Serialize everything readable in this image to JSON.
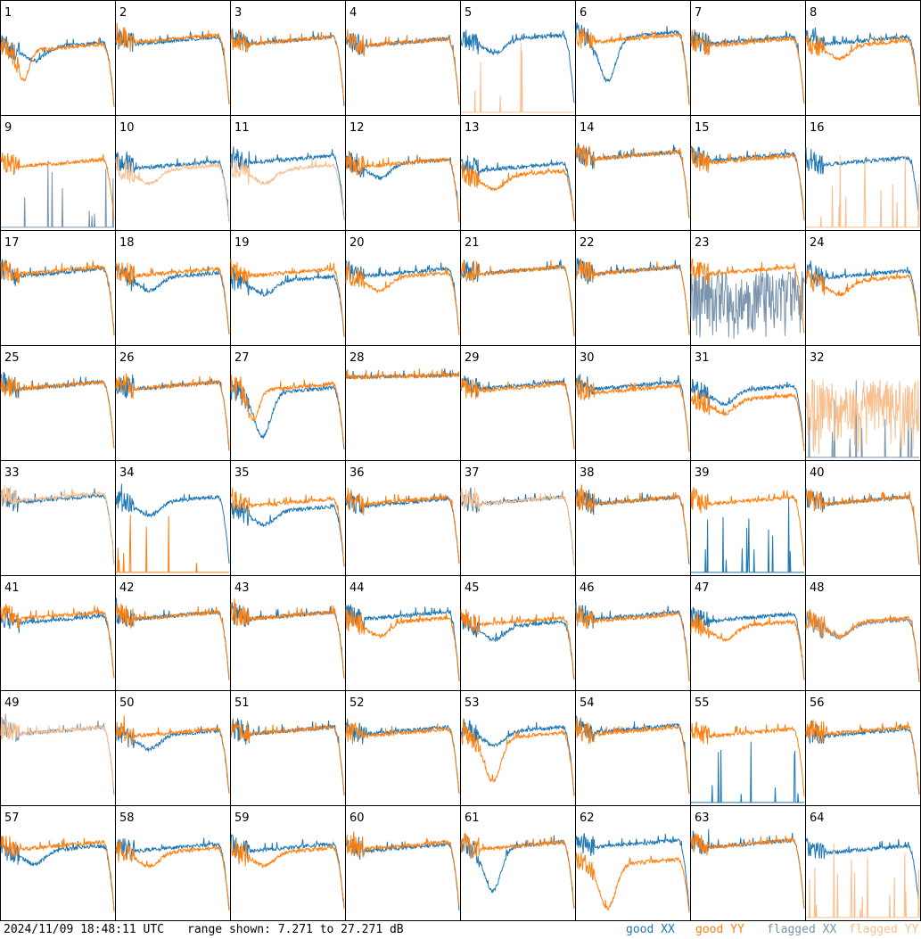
{
  "footer": {
    "timestamp": "2024/11/09 18:48:11 UTC",
    "range": "range shown: 7.271 to 27.271 dB"
  },
  "legend": {
    "good_xx": "good XX",
    "good_yy": "good YY",
    "flagged_xx": "flagged XX",
    "flagged_yy": "flagged YY"
  },
  "colors": {
    "good_xx": "#1f77b4",
    "good_yy": "#ff7f0e",
    "flagged_xx": "#7a94ad",
    "flagged_yy": "#f9bf8f"
  },
  "chart_data": {
    "type": "line",
    "grid": "8x8 small multiples",
    "y_range_db": [
      7.271,
      27.271
    ],
    "legend_placement": "bottom-right",
    "panels": [
      {
        "label": "1",
        "xx": {
          "status": "good",
          "shape": "dipped",
          "level": 0.74
        },
        "yy": {
          "status": "good",
          "shape": "notched",
          "level": 0.72
        }
      },
      {
        "label": "2",
        "xx": {
          "status": "good",
          "shape": "normal",
          "level": 0.8
        },
        "yy": {
          "status": "good",
          "shape": "normal",
          "level": 0.82
        }
      },
      {
        "label": "3",
        "xx": {
          "status": "good",
          "shape": "normal",
          "level": 0.8
        },
        "yy": {
          "status": "good",
          "shape": "normal",
          "level": 0.8
        }
      },
      {
        "label": "4",
        "xx": {
          "status": "good",
          "shape": "normal",
          "level": 0.78
        },
        "yy": {
          "status": "good",
          "shape": "normal",
          "level": 0.78
        }
      },
      {
        "label": "5",
        "xx": {
          "status": "good",
          "shape": "dipped",
          "level": 0.82
        },
        "yy": {
          "status": "flagged",
          "shape": "spikes",
          "level": 0.05
        }
      },
      {
        "label": "6",
        "xx": {
          "status": "good",
          "shape": "deepdip",
          "level": 0.85
        },
        "yy": {
          "status": "good",
          "shape": "normal",
          "level": 0.82
        }
      },
      {
        "label": "7",
        "xx": {
          "status": "good",
          "shape": "normal",
          "level": 0.8
        },
        "yy": {
          "status": "good",
          "shape": "normal",
          "level": 0.78
        }
      },
      {
        "label": "8",
        "xx": {
          "status": "good",
          "shape": "normal",
          "level": 0.8
        },
        "yy": {
          "status": "good",
          "shape": "dipped",
          "level": 0.76
        }
      },
      {
        "label": "9",
        "xx": {
          "status": "flagged",
          "shape": "spikes",
          "level": 0.05
        },
        "yy": {
          "status": "good",
          "shape": "normal",
          "level": 0.72
        }
      },
      {
        "label": "10",
        "xx": {
          "status": "good",
          "shape": "normal",
          "level": 0.7
        },
        "yy": {
          "status": "flagged",
          "shape": "dipped",
          "level": 0.66
        }
      },
      {
        "label": "11",
        "xx": {
          "status": "good",
          "shape": "normal",
          "level": 0.76
        },
        "yy": {
          "status": "flagged",
          "shape": "dipped",
          "level": 0.66
        }
      },
      {
        "label": "12",
        "xx": {
          "status": "good",
          "shape": "dipped",
          "level": 0.72
        },
        "yy": {
          "status": "good",
          "shape": "normal",
          "level": 0.72
        }
      },
      {
        "label": "13",
        "xx": {
          "status": "good",
          "shape": "normal",
          "level": 0.68
        },
        "yy": {
          "status": "good",
          "shape": "dipped",
          "level": 0.6
        }
      },
      {
        "label": "14",
        "xx": {
          "status": "good",
          "shape": "normal",
          "level": 0.8
        },
        "yy": {
          "status": "good",
          "shape": "normal",
          "level": 0.8
        }
      },
      {
        "label": "15",
        "xx": {
          "status": "good",
          "shape": "normal",
          "level": 0.78
        },
        "yy": {
          "status": "good",
          "shape": "normal",
          "level": 0.76
        }
      },
      {
        "label": "16",
        "xx": {
          "status": "good",
          "shape": "normal",
          "level": 0.74
        },
        "yy": {
          "status": "flagged",
          "shape": "spikes",
          "level": 0.05
        }
      },
      {
        "label": "17",
        "xx": {
          "status": "good",
          "shape": "normal",
          "level": 0.78
        },
        "yy": {
          "status": "good",
          "shape": "normal",
          "level": 0.8
        }
      },
      {
        "label": "18",
        "xx": {
          "status": "good",
          "shape": "dipped",
          "level": 0.74
        },
        "yy": {
          "status": "good",
          "shape": "normal",
          "level": 0.78
        }
      },
      {
        "label": "19",
        "xx": {
          "status": "good",
          "shape": "dipped",
          "level": 0.7
        },
        "yy": {
          "status": "good",
          "shape": "normal",
          "level": 0.78
        }
      },
      {
        "label": "20",
        "xx": {
          "status": "good",
          "shape": "normal",
          "level": 0.78
        },
        "yy": {
          "status": "good",
          "shape": "dipped",
          "level": 0.74
        }
      },
      {
        "label": "21",
        "xx": {
          "status": "good",
          "shape": "normal",
          "level": 0.8
        },
        "yy": {
          "status": "good",
          "shape": "normal",
          "level": 0.8
        }
      },
      {
        "label": "22",
        "xx": {
          "status": "good",
          "shape": "normal",
          "level": 0.8
        },
        "yy": {
          "status": "good",
          "shape": "normal",
          "level": 0.8
        }
      },
      {
        "label": "23",
        "xx": {
          "status": "flagged",
          "shape": "noisy",
          "level": 0.5
        },
        "yy": {
          "status": "good",
          "shape": "normal",
          "level": 0.8
        }
      },
      {
        "label": "24",
        "xx": {
          "status": "good",
          "shape": "normal",
          "level": 0.76
        },
        "yy": {
          "status": "good",
          "shape": "dipped",
          "level": 0.7
        }
      },
      {
        "label": "25",
        "xx": {
          "status": "good",
          "shape": "normal",
          "level": 0.8
        },
        "yy": {
          "status": "good",
          "shape": "normal",
          "level": 0.8
        }
      },
      {
        "label": "26",
        "xx": {
          "status": "good",
          "shape": "normal",
          "level": 0.8
        },
        "yy": {
          "status": "good",
          "shape": "normal",
          "level": 0.8
        }
      },
      {
        "label": "27",
        "xx": {
          "status": "good",
          "shape": "deepdip",
          "level": 0.74
        },
        "yy": {
          "status": "good",
          "shape": "notched",
          "level": 0.78
        }
      },
      {
        "label": "28",
        "xx": {
          "status": "good",
          "shape": "flat",
          "level": 0.86
        },
        "yy": {
          "status": "good",
          "shape": "flat",
          "level": 0.86
        }
      },
      {
        "label": "29",
        "xx": {
          "status": "good",
          "shape": "normal",
          "level": 0.8
        },
        "yy": {
          "status": "good",
          "shape": "normal",
          "level": 0.78
        }
      },
      {
        "label": "30",
        "xx": {
          "status": "good",
          "shape": "normal",
          "level": 0.8
        },
        "yy": {
          "status": "good",
          "shape": "normal",
          "level": 0.76
        }
      },
      {
        "label": "31",
        "xx": {
          "status": "good",
          "shape": "dipped",
          "level": 0.76
        },
        "yy": {
          "status": "good",
          "shape": "dipped",
          "level": 0.66
        }
      },
      {
        "label": "32",
        "xx": {
          "status": "flagged",
          "shape": "spikes",
          "level": 0.05
        },
        "yy": {
          "status": "flagged",
          "shape": "noisy",
          "level": 0.56
        }
      },
      {
        "label": "33",
        "xx": {
          "status": "good",
          "shape": "normal",
          "level": 0.82
        },
        "yy": {
          "status": "flagged",
          "shape": "normal",
          "level": 0.84
        }
      },
      {
        "label": "34",
        "xx": {
          "status": "good",
          "shape": "dipped",
          "level": 0.8
        },
        "yy": {
          "status": "good",
          "shape": "spikes",
          "level": 0.05
        }
      },
      {
        "label": "35",
        "xx": {
          "status": "good",
          "shape": "dipped",
          "level": 0.7
        },
        "yy": {
          "status": "good",
          "shape": "normal",
          "level": 0.78
        }
      },
      {
        "label": "36",
        "xx": {
          "status": "good",
          "shape": "normal",
          "level": 0.78
        },
        "yy": {
          "status": "good",
          "shape": "normal",
          "level": 0.8
        }
      },
      {
        "label": "37",
        "xx": {
          "status": "good",
          "shape": "normal",
          "level": 0.8
        },
        "yy": {
          "status": "flagged",
          "shape": "normal",
          "level": 0.8
        }
      },
      {
        "label": "38",
        "xx": {
          "status": "good",
          "shape": "normal",
          "level": 0.8
        },
        "yy": {
          "status": "good",
          "shape": "normal",
          "level": 0.8
        }
      },
      {
        "label": "39",
        "xx": {
          "status": "good",
          "shape": "spikes",
          "level": 0.05
        },
        "yy": {
          "status": "good",
          "shape": "normal",
          "level": 0.8
        }
      },
      {
        "label": "40",
        "xx": {
          "status": "good",
          "shape": "normal",
          "level": 0.8
        },
        "yy": {
          "status": "good",
          "shape": "normal",
          "level": 0.8
        }
      },
      {
        "label": "41",
        "xx": {
          "status": "good",
          "shape": "normal",
          "level": 0.76
        },
        "yy": {
          "status": "good",
          "shape": "normal",
          "level": 0.8
        }
      },
      {
        "label": "42",
        "xx": {
          "status": "good",
          "shape": "normal",
          "level": 0.8
        },
        "yy": {
          "status": "good",
          "shape": "normal",
          "level": 0.8
        }
      },
      {
        "label": "43",
        "xx": {
          "status": "good",
          "shape": "normal",
          "level": 0.8
        },
        "yy": {
          "status": "good",
          "shape": "normal",
          "level": 0.8
        }
      },
      {
        "label": "44",
        "xx": {
          "status": "good",
          "shape": "normal",
          "level": 0.8
        },
        "yy": {
          "status": "good",
          "shape": "dipped",
          "level": 0.74
        }
      },
      {
        "label": "45",
        "xx": {
          "status": "good",
          "shape": "dipped",
          "level": 0.7
        },
        "yy": {
          "status": "good",
          "shape": "normal",
          "level": 0.74
        }
      },
      {
        "label": "46",
        "xx": {
          "status": "good",
          "shape": "normal",
          "level": 0.8
        },
        "yy": {
          "status": "good",
          "shape": "normal",
          "level": 0.78
        }
      },
      {
        "label": "47",
        "xx": {
          "status": "good",
          "shape": "normal",
          "level": 0.78
        },
        "yy": {
          "status": "good",
          "shape": "dipped",
          "level": 0.7
        }
      },
      {
        "label": "48",
        "xx": {
          "status": "flagged",
          "shape": "dipped",
          "level": 0.72
        },
        "yy": {
          "status": "good",
          "shape": "dipped",
          "level": 0.74
        }
      },
      {
        "label": "49",
        "xx": {
          "status": "flagged",
          "shape": "normal",
          "level": 0.8
        },
        "yy": {
          "status": "flagged",
          "shape": "normal",
          "level": 0.8
        }
      },
      {
        "label": "50",
        "xx": {
          "status": "good",
          "shape": "dipped",
          "level": 0.76
        },
        "yy": {
          "status": "good",
          "shape": "normal",
          "level": 0.78
        }
      },
      {
        "label": "51",
        "xx": {
          "status": "good",
          "shape": "normal",
          "level": 0.8
        },
        "yy": {
          "status": "good",
          "shape": "normal",
          "level": 0.8
        }
      },
      {
        "label": "52",
        "xx": {
          "status": "good",
          "shape": "normal",
          "level": 0.8
        },
        "yy": {
          "status": "good",
          "shape": "normal",
          "level": 0.78
        }
      },
      {
        "label": "53",
        "xx": {
          "status": "good",
          "shape": "dipped",
          "level": 0.8
        },
        "yy": {
          "status": "good",
          "shape": "deepdip",
          "level": 0.74
        }
      },
      {
        "label": "54",
        "xx": {
          "status": "good",
          "shape": "normal",
          "level": 0.82
        },
        "yy": {
          "status": "good",
          "shape": "normal",
          "level": 0.8
        }
      },
      {
        "label": "55",
        "xx": {
          "status": "good",
          "shape": "spikes",
          "level": 0.05
        },
        "yy": {
          "status": "good",
          "shape": "normal",
          "level": 0.78
        }
      },
      {
        "label": "56",
        "xx": {
          "status": "good",
          "shape": "normal",
          "level": 0.78
        },
        "yy": {
          "status": "good",
          "shape": "normal",
          "level": 0.8
        }
      },
      {
        "label": "57",
        "xx": {
          "status": "good",
          "shape": "dipped",
          "level": 0.76
        },
        "yy": {
          "status": "good",
          "shape": "normal",
          "level": 0.8
        }
      },
      {
        "label": "58",
        "xx": {
          "status": "good",
          "shape": "normal",
          "level": 0.78
        },
        "yy": {
          "status": "good",
          "shape": "dipped",
          "level": 0.74
        }
      },
      {
        "label": "59",
        "xx": {
          "status": "good",
          "shape": "normal",
          "level": 0.78
        },
        "yy": {
          "status": "good",
          "shape": "dipped",
          "level": 0.74
        }
      },
      {
        "label": "60",
        "xx": {
          "status": "good",
          "shape": "normal",
          "level": 0.78
        },
        "yy": {
          "status": "good",
          "shape": "normal",
          "level": 0.8
        }
      },
      {
        "label": "61",
        "xx": {
          "status": "good",
          "shape": "deepdip",
          "level": 0.8
        },
        "yy": {
          "status": "good",
          "shape": "normal",
          "level": 0.8
        }
      },
      {
        "label": "62",
        "xx": {
          "status": "good",
          "shape": "normal",
          "level": 0.82
        },
        "yy": {
          "status": "good",
          "shape": "deepdip",
          "level": 0.62
        }
      },
      {
        "label": "63",
        "xx": {
          "status": "good",
          "shape": "normal",
          "level": 0.82
        },
        "yy": {
          "status": "good",
          "shape": "normal",
          "level": 0.82
        }
      },
      {
        "label": "64",
        "xx": {
          "status": "good",
          "shape": "normal",
          "level": 0.76
        },
        "yy": {
          "status": "flagged",
          "shape": "spikes",
          "level": 0.05
        }
      }
    ]
  }
}
